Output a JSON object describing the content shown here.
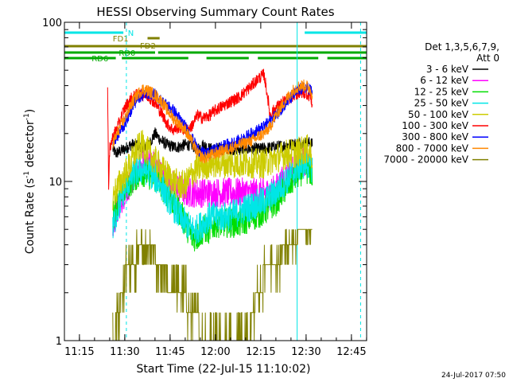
{
  "chart_data": {
    "type": "line",
    "title": "HESSI Observing Summary Count Rates",
    "xlabel": "Start Time (22-Jul-15 11:10:02)",
    "ylabel": "Count Rate (s⁻¹ detector⁻¹)",
    "ylabel_main": "Count Rate (s",
    "ylabel_sup1": "-1",
    "ylabel_mid": " detector",
    "ylabel_sup2": "-1",
    "ylabel_end": ")",
    "yscale": "log",
    "ylim": [
      1,
      100
    ],
    "xlim_minutes": [
      0,
      100
    ],
    "x_ticks": [
      {
        "minute": 4.97,
        "label": "11:15"
      },
      {
        "minute": 19.97,
        "label": "11:30"
      },
      {
        "minute": 34.97,
        "label": "11:45"
      },
      {
        "minute": 49.97,
        "label": "12:00"
      },
      {
        "minute": 64.97,
        "label": "12:15"
      },
      {
        "minute": 79.97,
        "label": "12:30"
      },
      {
        "minute": 94.97,
        "label": "12:45"
      }
    ],
    "y_ticks": [
      {
        "value": 1,
        "label": "1"
      },
      {
        "value": 10,
        "label": "10"
      },
      {
        "value": 100,
        "label": "100"
      }
    ],
    "legend_header": [
      "Det 1,3,5,6,7,9,",
      "Att 0"
    ],
    "legend_position": "right",
    "timestamp": "24-Jul-2017 07:50",
    "flags": [
      {
        "name": "N",
        "color": "#00e6e6",
        "row": 0,
        "label_minute": 21,
        "segments": [
          [
            0,
            19.5
          ],
          [
            79.5,
            100
          ]
        ]
      },
      {
        "name": "FD1",
        "color": "#808000",
        "row": 1,
        "label_minute": 16,
        "segments": [
          [
            27.5,
            31.5
          ]
        ]
      },
      {
        "name": "FD2",
        "color": "#808000",
        "row": 2,
        "label_minute": 25,
        "segments": [
          [
            0,
            100
          ]
        ]
      },
      {
        "name": "RD0",
        "color": "#00aa00",
        "row": 3,
        "label_minute": 18,
        "segments": [
          [
            0,
            30
          ],
          [
            31,
            100
          ]
        ]
      },
      {
        "name": "RD6",
        "color": "#00aa00",
        "row": 4,
        "label_minute": 9,
        "segments": [
          [
            0,
            17
          ],
          [
            19,
            41
          ],
          [
            47,
            61
          ],
          [
            64,
            84
          ],
          [
            87,
            100
          ]
        ]
      }
    ],
    "vlines": [
      {
        "minute": 20.5,
        "color": "#00e6e6",
        "dashed": true
      },
      {
        "minute": 77.0,
        "color": "#00e6e6",
        "dashed": false
      },
      {
        "minute": 98.0,
        "color": "#00e6e6",
        "dashed": true
      },
      {
        "minute": 0.0,
        "color": "#00e6e6",
        "dashed": false
      }
    ],
    "series": [
      {
        "name": "3 - 6 keV",
        "color": "#000000",
        "x": [
          16,
          17,
          20,
          22,
          24,
          26,
          28,
          30,
          32,
          34,
          36,
          38,
          40,
          42,
          44,
          46,
          48,
          50,
          55,
          60,
          65,
          70,
          75,
          78,
          80,
          81.5,
          82
        ],
        "y": [
          16,
          15,
          16,
          17,
          17,
          16.5,
          17,
          20,
          18,
          17,
          16.5,
          16.5,
          17,
          17,
          16,
          17,
          16,
          16,
          16,
          16,
          16,
          16.5,
          17,
          17.5,
          17.5,
          17.5,
          17
        ]
      },
      {
        "name": "6 - 12 keV",
        "color": "#ff00ff",
        "x": [
          16,
          18,
          20,
          22,
          24,
          26,
          28,
          30,
          32,
          34,
          36,
          38,
          40,
          42,
          44,
          46,
          48,
          50,
          54,
          58,
          62,
          66,
          68,
          70,
          72,
          74,
          76,
          78,
          80,
          81.5,
          82
        ],
        "y": [
          5,
          7,
          8.5,
          10,
          11.5,
          13,
          13.5,
          12.5,
          11,
          10,
          9.5,
          9,
          8.5,
          8.5,
          8.5,
          8.5,
          8.5,
          8.5,
          8.5,
          8.5,
          8.5,
          8.5,
          8.5,
          9,
          10,
          11,
          12,
          13,
          13.5,
          13,
          12
        ]
      },
      {
        "name": "12 - 25 keV",
        "color": "#00dd00",
        "x": [
          16,
          18,
          20,
          22,
          24,
          26,
          28,
          30,
          32,
          34,
          36,
          38,
          40,
          42,
          44,
          46,
          48,
          50,
          54,
          58,
          62,
          66,
          70,
          72,
          74,
          76,
          78,
          80,
          81.5,
          82
        ],
        "y": [
          6,
          7.5,
          9,
          10,
          11,
          11.5,
          11,
          10.5,
          9.5,
          8.5,
          7.5,
          6.5,
          5.5,
          4.5,
          4.5,
          5,
          5,
          5.5,
          5.5,
          5.5,
          6,
          6.5,
          7.5,
          8.5,
          9.5,
          10.5,
          11.5,
          12,
          11.5,
          11
        ]
      },
      {
        "name": "25 - 50 keV",
        "color": "#00e6e6",
        "x": [
          16,
          18,
          20,
          22,
          24,
          26,
          28,
          30,
          32,
          34,
          36,
          38,
          40,
          42,
          44,
          46,
          48,
          50,
          54,
          58,
          62,
          66,
          70,
          72,
          74,
          76,
          78,
          80,
          81.5,
          82
        ],
        "y": [
          5,
          7,
          9,
          10.5,
          11.5,
          12,
          11.5,
          10.5,
          9.5,
          8,
          7,
          6,
          5.5,
          5,
          5,
          5.5,
          6,
          6,
          6,
          6.5,
          7,
          7.5,
          8.5,
          9.5,
          10.5,
          11.5,
          12.5,
          13,
          12.5,
          12
        ]
      },
      {
        "name": "50 - 100 keV",
        "color": "#cccc00",
        "x": [
          16,
          18,
          20,
          22,
          24,
          26,
          28,
          30,
          32,
          34,
          36,
          38,
          40,
          42,
          44,
          46,
          48,
          50,
          54,
          58,
          62,
          66,
          68,
          70,
          72,
          74,
          76,
          78,
          80,
          81.5,
          82
        ],
        "y": [
          8,
          9.5,
          11,
          13,
          16,
          17,
          15,
          13.5,
          12,
          11,
          10,
          9.5,
          9.5,
          11,
          12,
          12.5,
          13,
          13,
          13,
          13,
          13,
          13,
          13.5,
          14,
          14.5,
          15,
          15,
          15.5,
          16,
          15.5,
          14
        ]
      },
      {
        "name": "100 - 300 keV",
        "color": "#ff0000",
        "x": [
          14.3,
          14.6,
          15,
          16,
          18,
          20,
          22,
          24,
          26,
          28,
          30,
          32,
          34,
          36,
          38,
          40,
          42,
          44,
          46,
          48,
          50,
          54,
          58,
          62,
          64,
          66,
          68,
          70,
          72,
          74,
          76,
          78,
          80,
          81.5,
          82
        ],
        "y": [
          36,
          8,
          16,
          19,
          23,
          29,
          33,
          35,
          35,
          34,
          31,
          27,
          23,
          21,
          22,
          21,
          22,
          26,
          25,
          26,
          28,
          31,
          34,
          40,
          44,
          47,
          26,
          29,
          31,
          33,
          35,
          36,
          36,
          34,
          30
        ]
      },
      {
        "name": "300 - 800 keV",
        "color": "#0000ff",
        "x": [
          16,
          18,
          20,
          22,
          24,
          26,
          28,
          30,
          32,
          34,
          36,
          38,
          40,
          42,
          44,
          46,
          48,
          50,
          54,
          58,
          62,
          66,
          70,
          72,
          74,
          76,
          78,
          80,
          81.5,
          82
        ],
        "y": [
          17,
          20,
          23,
          28,
          33,
          35,
          36,
          35,
          32,
          30,
          28,
          25,
          22,
          19,
          16,
          15,
          15,
          16,
          17,
          18,
          20,
          22,
          26,
          29,
          32,
          35,
          38,
          39,
          38,
          35
        ]
      },
      {
        "name": "800 - 7000 keV",
        "color": "#ff8800",
        "x": [
          16,
          18,
          20,
          22,
          24,
          26,
          28,
          30,
          32,
          34,
          36,
          38,
          40,
          42,
          44,
          46,
          48,
          50,
          54,
          58,
          62,
          66,
          68,
          70,
          72,
          74,
          76,
          78,
          80,
          81.5,
          82
        ],
        "y": [
          17,
          21,
          25,
          30,
          35,
          38,
          37,
          35,
          32,
          28,
          25,
          23,
          21,
          18,
          15,
          14,
          14.5,
          15,
          16,
          17,
          18,
          20,
          22,
          26,
          30,
          34,
          38,
          40,
          40,
          38,
          35
        ]
      },
      {
        "name": "7000 - 20000 keV",
        "color": "#808000",
        "x": [
          16,
          18,
          19,
          20,
          22,
          24,
          26,
          28,
          30,
          32,
          34,
          36,
          38,
          40,
          42,
          44,
          46,
          48,
          52,
          56,
          60,
          62,
          63,
          64,
          66,
          68,
          70,
          72,
          74,
          76,
          78,
          80,
          81.5,
          82
        ],
        "y": [
          1,
          1.5,
          2,
          2.5,
          2.8,
          3.5,
          4,
          4,
          3.5,
          3,
          2.5,
          2,
          2,
          1.8,
          1.5,
          1.3,
          1,
          1,
          1,
          1,
          1,
          1.3,
          1.7,
          2.1,
          2.5,
          2.8,
          3.2,
          3.5,
          4,
          4.3,
          4.6,
          5,
          5,
          4.8
        ]
      }
    ]
  }
}
